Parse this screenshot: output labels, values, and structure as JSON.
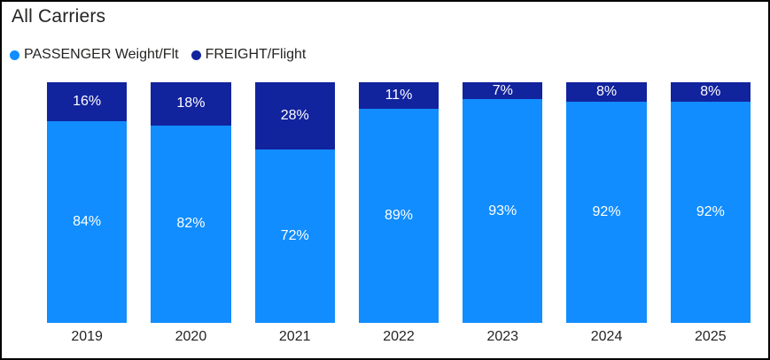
{
  "title": "All Carriers",
  "legend": [
    {
      "label": "PASSENGER Weight/Flt",
      "color": "#118DFF",
      "icon": "circle-swatch-icon"
    },
    {
      "label": "FREIGHT/Flight",
      "color": "#12239E",
      "icon": "circle-swatch-icon"
    }
  ],
  "colors": {
    "passenger": "#118DFF",
    "freight": "#12239E",
    "text": "#252423",
    "bar_label_text": "#FFFFFF",
    "frame_border": "#000000",
    "background": "#FFFFFF"
  },
  "chart_data": {
    "type": "bar",
    "subtype": "stacked-100-percent-column",
    "title": "All Carriers",
    "xlabel": "",
    "ylabel": "",
    "ylim": [
      0,
      100
    ],
    "grid": false,
    "legend_position": "top-left",
    "categories": [
      "2019",
      "2020",
      "2021",
      "2022",
      "2023",
      "2024",
      "2025"
    ],
    "series": [
      {
        "name": "PASSENGER Weight/Flt",
        "color": "#118DFF",
        "values": [
          84,
          82,
          72,
          89,
          93,
          92,
          92
        ],
        "labels": [
          "84%",
          "82%",
          "72%",
          "89%",
          "93%",
          "92%",
          "92%"
        ]
      },
      {
        "name": "FREIGHT/Flight",
        "color": "#12239E",
        "values": [
          16,
          18,
          28,
          11,
          7,
          8,
          8
        ],
        "labels": [
          "16%",
          "18%",
          "28%",
          "11%",
          "7%",
          "8%",
          "8%"
        ]
      }
    ]
  }
}
